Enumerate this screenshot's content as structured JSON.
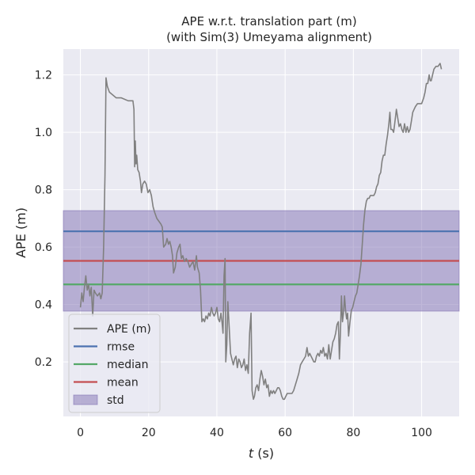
{
  "chart_data": {
    "type": "line",
    "title": "APE w.r.t. translation part (m)",
    "subtitle": "(with Sim(3) Umeyama alignment)",
    "xlabel_italic": "t",
    "xlabel_rest": " (s)",
    "ylabel": "APE (m)",
    "xlim": [
      -5,
      111
    ],
    "ylim": [
      0.01,
      1.29
    ],
    "xticks": [
      0,
      20,
      40,
      60,
      80,
      100
    ],
    "yticks": [
      0.2,
      0.4,
      0.6,
      0.8,
      1.0,
      1.2
    ],
    "grid": true,
    "legend_position": "lower-left",
    "colors": {
      "background": "#eaeaf2",
      "grid": "#ffffff",
      "ape": "#808080",
      "rmse": "#4c72b0",
      "median": "#55a868",
      "mean": "#c44e52",
      "std_fill": "#8172b3"
    },
    "stats": {
      "rmse": 0.655,
      "median": 0.47,
      "mean": 0.552,
      "std_low": 0.377,
      "std_high": 0.727
    },
    "legend": [
      {
        "key": "ape",
        "label": "APE (m)",
        "kind": "line"
      },
      {
        "key": "rmse",
        "label": "rmse",
        "kind": "line"
      },
      {
        "key": "median",
        "label": "median",
        "kind": "line"
      },
      {
        "key": "mean",
        "label": "mean",
        "kind": "line"
      },
      {
        "key": "std",
        "label": "std",
        "kind": "patch"
      }
    ],
    "series": [
      {
        "name": "APE (m)",
        "points": [
          [
            0.0,
            0.39
          ],
          [
            0.4,
            0.44
          ],
          [
            0.8,
            0.41
          ],
          [
            1.2,
            0.46
          ],
          [
            1.6,
            0.5
          ],
          [
            2.0,
            0.45
          ],
          [
            2.4,
            0.47
          ],
          [
            2.8,
            0.43
          ],
          [
            3.2,
            0.46
          ],
          [
            3.6,
            0.36
          ],
          [
            4.0,
            0.45
          ],
          [
            4.4,
            0.44
          ],
          [
            5.0,
            0.43
          ],
          [
            5.6,
            0.44
          ],
          [
            6.0,
            0.42
          ],
          [
            6.4,
            0.44
          ],
          [
            6.8,
            0.6
          ],
          [
            7.2,
            0.85
          ],
          [
            7.5,
            1.19
          ],
          [
            7.9,
            1.16
          ],
          [
            8.5,
            1.14
          ],
          [
            9.5,
            1.13
          ],
          [
            10.5,
            1.12
          ],
          [
            12,
            1.12
          ],
          [
            14,
            1.11
          ],
          [
            15.4,
            1.11
          ],
          [
            15.7,
            1.08
          ],
          [
            15.9,
            0.88
          ],
          [
            16.1,
            0.97
          ],
          [
            16.3,
            0.89
          ],
          [
            16.5,
            0.92
          ],
          [
            16.8,
            0.87
          ],
          [
            17.2,
            0.86
          ],
          [
            17.6,
            0.83
          ],
          [
            17.9,
            0.79
          ],
          [
            18.3,
            0.82
          ],
          [
            18.8,
            0.83
          ],
          [
            19.3,
            0.82
          ],
          [
            19.8,
            0.79
          ],
          [
            20.3,
            0.8
          ],
          [
            20.8,
            0.78
          ],
          [
            21.3,
            0.74
          ],
          [
            21.8,
            0.72
          ],
          [
            22.4,
            0.7
          ],
          [
            23.0,
            0.69
          ],
          [
            23.6,
            0.68
          ],
          [
            24.0,
            0.67
          ],
          [
            24.4,
            0.6
          ],
          [
            25.0,
            0.61
          ],
          [
            25.4,
            0.63
          ],
          [
            25.8,
            0.61
          ],
          [
            26.2,
            0.62
          ],
          [
            26.6,
            0.6
          ],
          [
            27.0,
            0.57
          ],
          [
            27.3,
            0.51
          ],
          [
            27.8,
            0.53
          ],
          [
            28.3,
            0.58
          ],
          [
            28.8,
            0.6
          ],
          [
            29.2,
            0.61
          ],
          [
            29.6,
            0.56
          ],
          [
            30.0,
            0.57
          ],
          [
            30.5,
            0.55
          ],
          [
            31.0,
            0.56
          ],
          [
            31.5,
            0.55
          ],
          [
            32.0,
            0.53
          ],
          [
            32.5,
            0.54
          ],
          [
            33.0,
            0.55
          ],
          [
            33.5,
            0.52
          ],
          [
            34.0,
            0.57
          ],
          [
            34.3,
            0.53
          ],
          [
            34.8,
            0.51
          ],
          [
            35.2,
            0.45
          ],
          [
            35.6,
            0.34
          ],
          [
            36.0,
            0.35
          ],
          [
            36.4,
            0.34
          ],
          [
            36.8,
            0.36
          ],
          [
            37.2,
            0.35
          ],
          [
            37.6,
            0.37
          ],
          [
            38.0,
            0.36
          ],
          [
            38.4,
            0.39
          ],
          [
            38.8,
            0.37
          ],
          [
            39.2,
            0.36
          ],
          [
            39.6,
            0.37
          ],
          [
            40.0,
            0.39
          ],
          [
            40.4,
            0.35
          ],
          [
            40.8,
            0.34
          ],
          [
            41.2,
            0.37
          ],
          [
            41.5,
            0.34
          ],
          [
            41.8,
            0.3
          ],
          [
            42.1,
            0.5
          ],
          [
            42.4,
            0.56
          ],
          [
            42.6,
            0.2
          ],
          [
            42.9,
            0.26
          ],
          [
            43.2,
            0.41
          ],
          [
            43.6,
            0.32
          ],
          [
            44.0,
            0.23
          ],
          [
            44.4,
            0.21
          ],
          [
            44.8,
            0.19
          ],
          [
            45.2,
            0.21
          ],
          [
            45.6,
            0.22
          ],
          [
            46.0,
            0.18
          ],
          [
            46.4,
            0.21
          ],
          [
            46.8,
            0.2
          ],
          [
            47.2,
            0.18
          ],
          [
            47.6,
            0.19
          ],
          [
            48.0,
            0.21
          ],
          [
            48.4,
            0.17
          ],
          [
            48.8,
            0.19
          ],
          [
            49.2,
            0.16
          ],
          [
            49.6,
            0.3
          ],
          [
            50.0,
            0.37
          ],
          [
            50.3,
            0.1
          ],
          [
            50.7,
            0.07
          ],
          [
            51.0,
            0.08
          ],
          [
            51.4,
            0.11
          ],
          [
            51.8,
            0.12
          ],
          [
            52.2,
            0.1
          ],
          [
            52.6,
            0.14
          ],
          [
            53.0,
            0.17
          ],
          [
            53.4,
            0.15
          ],
          [
            53.8,
            0.12
          ],
          [
            54.2,
            0.14
          ],
          [
            54.6,
            0.11
          ],
          [
            55.0,
            0.12
          ],
          [
            55.4,
            0.08
          ],
          [
            55.8,
            0.1
          ],
          [
            56.2,
            0.09
          ],
          [
            56.6,
            0.1
          ],
          [
            57.0,
            0.09
          ],
          [
            57.4,
            0.1
          ],
          [
            57.8,
            0.11
          ],
          [
            58.2,
            0.11
          ],
          [
            58.6,
            0.1
          ],
          [
            59.0,
            0.08
          ],
          [
            59.4,
            0.07
          ],
          [
            59.8,
            0.07
          ],
          [
            60.2,
            0.08
          ],
          [
            60.6,
            0.09
          ],
          [
            61.0,
            0.09
          ],
          [
            62.0,
            0.09
          ],
          [
            62.5,
            0.1
          ],
          [
            63.0,
            0.12
          ],
          [
            63.5,
            0.14
          ],
          [
            64.0,
            0.16
          ],
          [
            64.5,
            0.19
          ],
          [
            65.0,
            0.2
          ],
          [
            65.5,
            0.21
          ],
          [
            66.0,
            0.22
          ],
          [
            66.4,
            0.25
          ],
          [
            66.8,
            0.22
          ],
          [
            67.2,
            0.23
          ],
          [
            67.6,
            0.22
          ],
          [
            68.0,
            0.21
          ],
          [
            68.4,
            0.2
          ],
          [
            68.8,
            0.2
          ],
          [
            69.2,
            0.22
          ],
          [
            69.6,
            0.23
          ],
          [
            70.0,
            0.22
          ],
          [
            70.4,
            0.24
          ],
          [
            70.8,
            0.23
          ],
          [
            71.2,
            0.25
          ],
          [
            71.6,
            0.22
          ],
          [
            72.0,
            0.23
          ],
          [
            72.4,
            0.21
          ],
          [
            72.8,
            0.26
          ],
          [
            73.2,
            0.21
          ],
          [
            73.6,
            0.24
          ],
          [
            74.0,
            0.27
          ],
          [
            74.4,
            0.28
          ],
          [
            74.8,
            0.3
          ],
          [
            75.2,
            0.33
          ],
          [
            75.6,
            0.34
          ],
          [
            75.9,
            0.21
          ],
          [
            76.2,
            0.3
          ],
          [
            76.5,
            0.43
          ],
          [
            76.8,
            0.34
          ],
          [
            77.1,
            0.37
          ],
          [
            77.4,
            0.43
          ],
          [
            77.7,
            0.38
          ],
          [
            78.0,
            0.35
          ],
          [
            78.3,
            0.37
          ],
          [
            78.6,
            0.29
          ],
          [
            79.0,
            0.34
          ],
          [
            79.4,
            0.38
          ],
          [
            79.8,
            0.39
          ],
          [
            80.2,
            0.41
          ],
          [
            80.6,
            0.43
          ],
          [
            81.0,
            0.44
          ],
          [
            81.4,
            0.47
          ],
          [
            81.8,
            0.5
          ],
          [
            82.2,
            0.54
          ],
          [
            82.6,
            0.61
          ],
          [
            83.0,
            0.68
          ],
          [
            83.4,
            0.73
          ],
          [
            83.8,
            0.76
          ],
          [
            84.2,
            0.77
          ],
          [
            84.6,
            0.77
          ],
          [
            85.0,
            0.78
          ],
          [
            85.5,
            0.78
          ],
          [
            86.0,
            0.78
          ],
          [
            86.4,
            0.79
          ],
          [
            86.8,
            0.81
          ],
          [
            87.2,
            0.82
          ],
          [
            87.6,
            0.85
          ],
          [
            88.0,
            0.86
          ],
          [
            88.4,
            0.9
          ],
          [
            88.8,
            0.92
          ],
          [
            89.2,
            0.92
          ],
          [
            89.6,
            0.96
          ],
          [
            90.0,
            0.99
          ],
          [
            90.4,
            1.03
          ],
          [
            90.7,
            1.07
          ],
          [
            91.0,
            1.01
          ],
          [
            91.4,
            1.01
          ],
          [
            91.8,
            1.0
          ],
          [
            92.2,
            1.04
          ],
          [
            92.6,
            1.08
          ],
          [
            93.0,
            1.05
          ],
          [
            93.4,
            1.02
          ],
          [
            93.8,
            1.03
          ],
          [
            94.2,
            1.01
          ],
          [
            94.6,
            1.0
          ],
          [
            95.0,
            1.03
          ],
          [
            95.4,
            1.0
          ],
          [
            95.8,
            1.02
          ],
          [
            96.2,
            1.0
          ],
          [
            96.6,
            1.01
          ],
          [
            97.0,
            1.04
          ],
          [
            97.4,
            1.07
          ],
          [
            97.8,
            1.08
          ],
          [
            98.2,
            1.09
          ],
          [
            98.8,
            1.1
          ],
          [
            99.4,
            1.1
          ],
          [
            100.0,
            1.1
          ],
          [
            100.6,
            1.12
          ],
          [
            101.0,
            1.14
          ],
          [
            101.4,
            1.17
          ],
          [
            101.8,
            1.17
          ],
          [
            102.2,
            1.2
          ],
          [
            102.5,
            1.18
          ],
          [
            102.8,
            1.18
          ],
          [
            103.2,
            1.2
          ],
          [
            103.6,
            1.22
          ],
          [
            104.2,
            1.23
          ],
          [
            104.8,
            1.23
          ],
          [
            105.4,
            1.24
          ],
          [
            105.8,
            1.22
          ]
        ]
      }
    ]
  }
}
